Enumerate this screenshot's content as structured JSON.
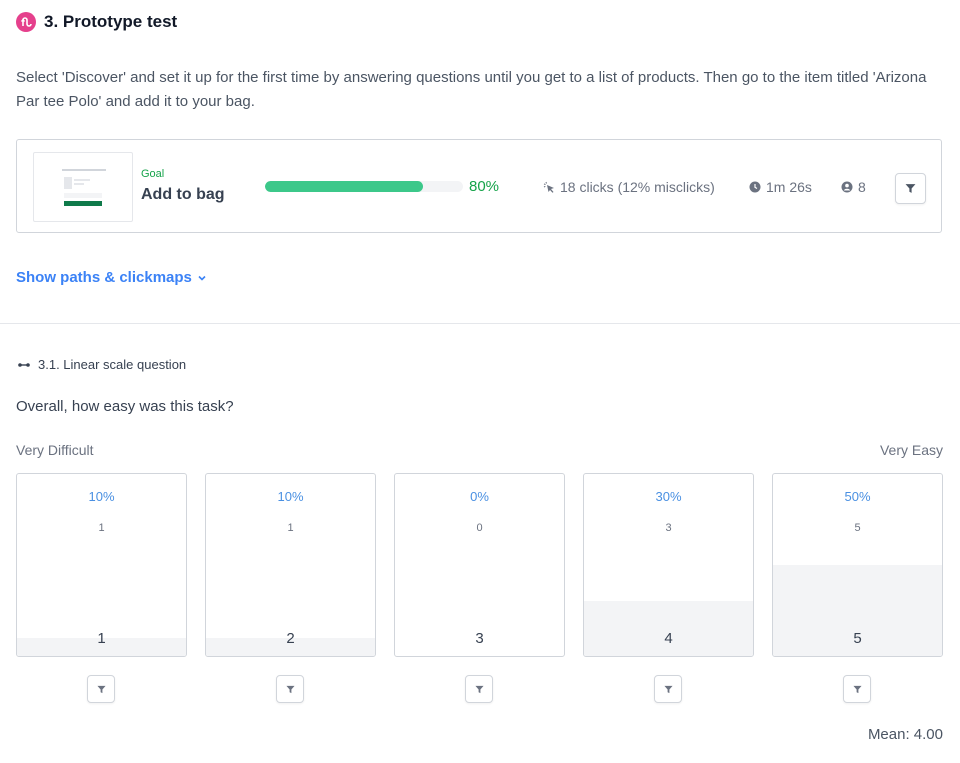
{
  "section": {
    "title": "3. Prototype test",
    "icon": "prototype-icon",
    "accent": "#e5408c"
  },
  "instructions": "Select 'Discover' and set it up for the first time by answering questions until you get to a list of products. Then go to the item titled 'Arizona Par tee Polo' and add it to your bag.",
  "goal": {
    "label": "Goal",
    "name": "Add to bag",
    "success_rate": 0.8,
    "success_text": "80%",
    "clicks_text": "18 clicks (12% misclicks)",
    "time_text": "1m 26s",
    "participants_text": "8",
    "bar_color": "#3cc88a"
  },
  "show_paths_label": "Show paths & clickmaps",
  "question": {
    "header": "3.1. Linear scale question",
    "text": "Overall, how easy was this task?",
    "scale_left": "Very Difficult",
    "scale_right": "Very Easy",
    "options": [
      {
        "label": "1",
        "percent_text": "10%",
        "count": "1",
        "fraction": 0.1
      },
      {
        "label": "2",
        "percent_text": "10%",
        "count": "1",
        "fraction": 0.1
      },
      {
        "label": "3",
        "percent_text": "0%",
        "count": "0",
        "fraction": 0.0
      },
      {
        "label": "4",
        "percent_text": "30%",
        "count": "3",
        "fraction": 0.3
      },
      {
        "label": "5",
        "percent_text": "50%",
        "count": "5",
        "fraction": 0.5
      }
    ],
    "mean_text": "Mean: 4.00"
  }
}
